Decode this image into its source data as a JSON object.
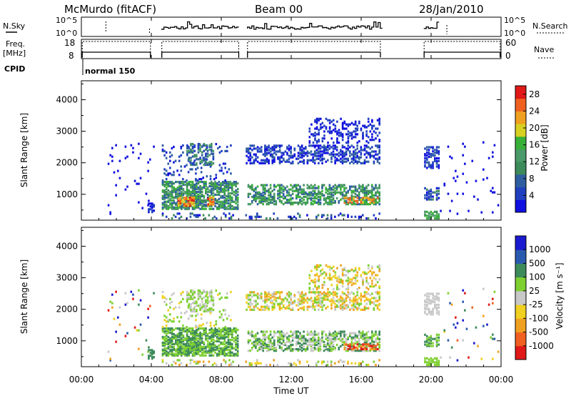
{
  "header": {
    "station": "McMurdo (fitACF)",
    "beam": "Beam 00",
    "date": "28/Jan/2010"
  },
  "noise_panel": {
    "left_label": "N.Sky",
    "right_label": "N.Search",
    "ticks": [
      "10^5",
      "10^0"
    ]
  },
  "freq_panel": {
    "left_label_1": "Freq.",
    "left_label_2": "[MHz]",
    "right_label": "Nave",
    "left_ticks": [
      "18",
      "8"
    ],
    "right_ticks": [
      "60",
      "0"
    ]
  },
  "cpid": {
    "label": "CPID",
    "mode": "normal 150"
  },
  "chart_data": [
    {
      "type": "heatmap",
      "panel": "power",
      "ylabel": "Slant Range [km]",
      "y_ticks": [
        "1000",
        "2000",
        "3000",
        "4000"
      ],
      "ylim": [
        180,
        4600
      ],
      "xlim_hours": [
        0,
        24
      ],
      "colorbar": {
        "label": "Power [dB]",
        "ticks": [
          "4",
          "8",
          "12",
          "16",
          "20",
          "24",
          "28"
        ],
        "range": [
          0,
          30
        ],
        "colors": [
          "#1010e0",
          "#2040c0",
          "#2e5ea0",
          "#3d8a5a",
          "#4a9a6a",
          "#38b038",
          "#d8d020",
          "#f0a020",
          "#f06020",
          "#e01818"
        ]
      }
    },
    {
      "type": "heatmap",
      "panel": "velocity",
      "ylabel": "Slant Range [km]",
      "y_ticks": [
        "1000",
        "2000",
        "3000",
        "4000"
      ],
      "ylim": [
        180,
        4600
      ],
      "xlim_hours": [
        0,
        24
      ],
      "colorbar": {
        "label": "Velocity [m s⁻¹]",
        "ticks": [
          "1000",
          "500",
          "100",
          "25",
          "-25",
          "-100",
          "-500",
          "-1000"
        ],
        "colors": [
          "#1a1ad0",
          "#2a5ab0",
          "#3d8a5a",
          "#7ed030",
          "#c8c8c8",
          "#f0d020",
          "#f0a020",
          "#f06020",
          "#e01818"
        ]
      }
    }
  ],
  "x_axis": {
    "label": "Time UT",
    "ticks": [
      "00:00",
      "04:00",
      "08:00",
      "12:00",
      "16:00",
      "20:00",
      "00:00"
    ]
  }
}
